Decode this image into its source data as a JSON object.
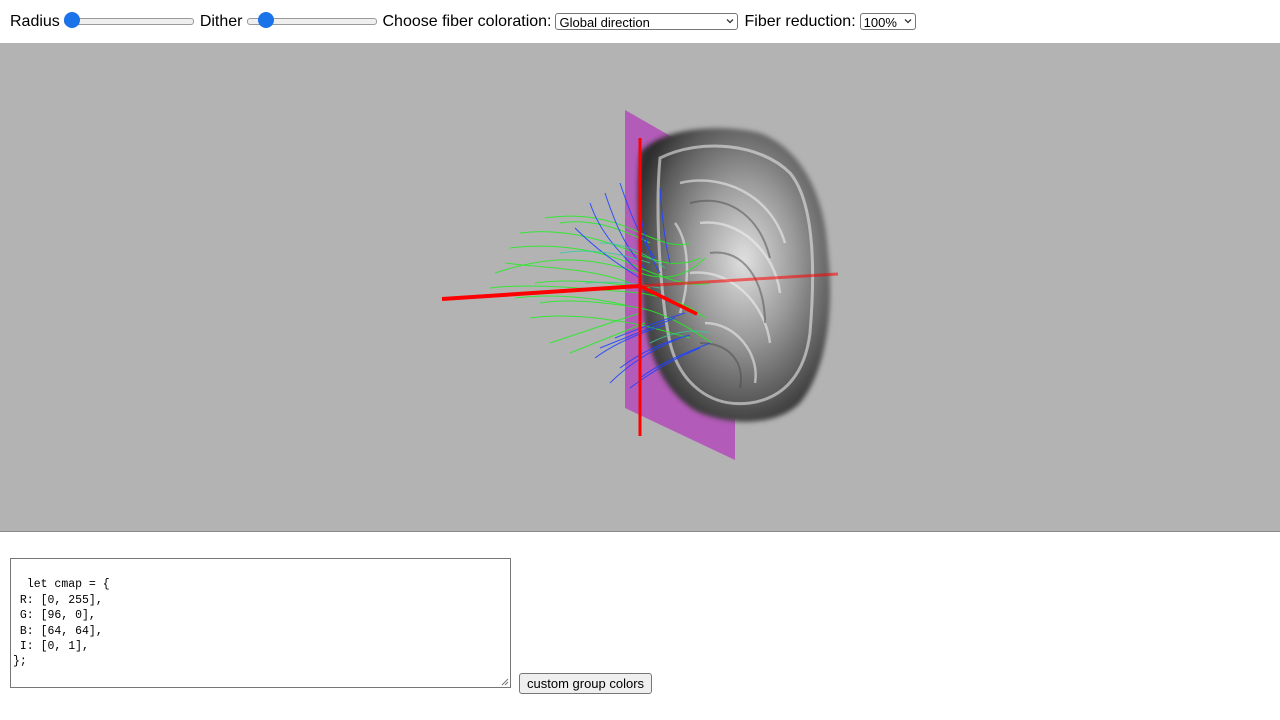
{
  "controls": {
    "radius_label": "Radius",
    "radius_value": 0,
    "dither_label": "Dither",
    "dither_value": 0.1,
    "coloration_label": "Choose fiber coloration:",
    "coloration_selected": "Global direction",
    "reduction_label": "Fiber reduction:",
    "reduction_selected": "100%"
  },
  "viewport": {
    "background": "#b3b3b3",
    "content": "3D brain MRI volume with tractography fibers and red axis lines",
    "fiber_colors": [
      "#22ee22",
      "#2244ff",
      "#33cc99"
    ],
    "plane_color": "#b35bb8",
    "axis_color": "#ff0000"
  },
  "editor": {
    "code": "let cmap = {\n R: [0, 255],\n G: [96, 0],\n B: [64, 64],\n I: [0, 1],\n};"
  },
  "buttons": {
    "custom_group_colors": "custom group colors"
  },
  "colors": {
    "slider_thumb": "#1a73e8"
  }
}
